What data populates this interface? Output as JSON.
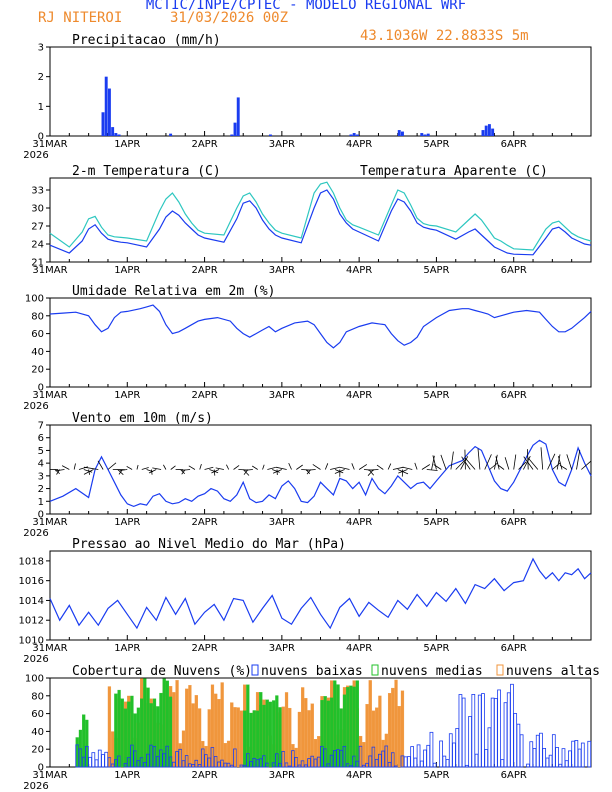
{
  "header": {
    "title": "MCTIC/INPE/CPTEC - MODELO REGIONAL WRF",
    "city": "RJ NITEROI",
    "date": "31/03/2026 00Z",
    "coords": "43.1036W 22.8833S 5m"
  },
  "colors": {
    "blue": "#1a3cf0",
    "cyan": "#2ec7c0",
    "green": "#22c02a",
    "orange": "#f0963c",
    "black": "#000000"
  },
  "x_axis": {
    "day_ticks": [
      "31MAR",
      "1APR",
      "2APR",
      "3APR",
      "4APR",
      "5APR",
      "6APR"
    ],
    "year": "2026",
    "hours_total": 168
  },
  "chart_data": [
    {
      "id": "precip",
      "type": "bar",
      "title": "Precipitacao (mm/h)",
      "ylim": [
        0,
        3
      ],
      "yticks": [
        0,
        1,
        2,
        3
      ],
      "x": [
        16,
        17,
        18,
        19,
        20,
        21,
        37,
        56,
        57,
        58,
        68,
        93,
        94,
        95,
        108,
        109,
        115,
        116,
        117,
        134,
        135,
        136,
        137
      ],
      "values": [
        0.8,
        2.0,
        1.6,
        0.3,
        0.1,
        0.05,
        0.08,
        0.05,
        0.45,
        1.3,
        0.05,
        0.05,
        0.1,
        0.05,
        0.2,
        0.15,
        0.1,
        0.05,
        0.08,
        0.2,
        0.35,
        0.4,
        0.25
      ]
    },
    {
      "id": "temp",
      "type": "line",
      "title": "2-m Temperatura (C)",
      "legend2": "Temperatura Aparente (C)",
      "ylim": [
        21,
        35
      ],
      "yticks": [
        21,
        24,
        27,
        30,
        33
      ],
      "x": [
        0,
        6,
        10,
        12,
        14,
        16,
        18,
        20,
        22,
        24,
        30,
        34,
        36,
        38,
        40,
        42,
        44,
        46,
        48,
        54,
        58,
        60,
        62,
        64,
        66,
        68,
        70,
        72,
        78,
        82,
        84,
        86,
        88,
        90,
        92,
        94,
        96,
        102,
        106,
        108,
        110,
        112,
        114,
        116,
        118,
        120,
        126,
        130,
        132,
        134,
        136,
        138,
        140,
        142,
        144,
        150,
        154,
        156,
        158,
        160,
        162,
        164,
        166,
        168
      ],
      "series": [
        {
          "name": "temp",
          "values": [
            23.8,
            22.5,
            24.5,
            26.5,
            27.2,
            25.8,
            24.8,
            24.5,
            24.3,
            24.2,
            23.5,
            26.5,
            28.5,
            29.5,
            28.8,
            27.5,
            26.5,
            25.5,
            25.0,
            24.3,
            28.2,
            30.8,
            31.2,
            30.0,
            28.0,
            26.5,
            25.5,
            25.0,
            24.2,
            30.0,
            32.5,
            33.0,
            31.5,
            29.0,
            27.5,
            26.5,
            26.0,
            24.5,
            29.5,
            31.5,
            31.0,
            29.5,
            27.5,
            26.8,
            26.5,
            26.3,
            24.8,
            26.0,
            26.5,
            25.5,
            24.5,
            23.5,
            23.0,
            22.5,
            22.3,
            22.2,
            25.0,
            26.5,
            26.8,
            26.0,
            25.0,
            24.5,
            24.0,
            23.8
          ]
        },
        {
          "name": "apparent",
          "values": [
            25.8,
            23.5,
            26.0,
            28.2,
            28.6,
            26.8,
            25.5,
            25.2,
            25.1,
            25.0,
            24.5,
            29.5,
            31.5,
            32.5,
            31.0,
            29.0,
            27.5,
            26.3,
            25.8,
            25.5,
            30.0,
            32.0,
            32.5,
            31.0,
            29.0,
            27.5,
            26.3,
            25.8,
            25.0,
            32.5,
            34.0,
            34.3,
            32.5,
            30.0,
            28.0,
            27.2,
            26.8,
            25.5,
            30.5,
            33.0,
            32.5,
            30.5,
            28.3,
            27.4,
            27.1,
            27.0,
            26.0,
            28.0,
            29.0,
            28.0,
            26.5,
            25.0,
            24.5,
            23.8,
            23.2,
            23.0,
            26.5,
            27.5,
            27.8,
            26.8,
            25.8,
            25.2,
            24.8,
            24.5
          ]
        }
      ]
    },
    {
      "id": "rh",
      "type": "line",
      "title": "Umidade Relativa em 2m (%)",
      "ylim": [
        0,
        100
      ],
      "yticks": [
        0,
        20,
        40,
        60,
        80,
        100
      ],
      "x": [
        0,
        4,
        8,
        12,
        14,
        16,
        18,
        20,
        22,
        24,
        28,
        30,
        32,
        34,
        36,
        38,
        40,
        42,
        44,
        46,
        48,
        52,
        56,
        58,
        60,
        62,
        64,
        66,
        68,
        70,
        72,
        76,
        80,
        82,
        84,
        86,
        88,
        90,
        92,
        96,
        100,
        104,
        106,
        108,
        110,
        112,
        114,
        116,
        120,
        124,
        128,
        130,
        132,
        134,
        136,
        138,
        140,
        144,
        148,
        152,
        154,
        156,
        158,
        160,
        162,
        164,
        166,
        168
      ],
      "values": [
        82,
        83,
        84,
        80,
        70,
        62,
        66,
        78,
        84,
        85,
        88,
        90,
        92,
        85,
        70,
        60,
        62,
        66,
        70,
        74,
        76,
        78,
        74,
        66,
        60,
        56,
        60,
        64,
        68,
        62,
        66,
        72,
        74,
        70,
        60,
        50,
        44,
        50,
        62,
        68,
        72,
        70,
        60,
        52,
        47,
        50,
        56,
        68,
        78,
        86,
        88,
        88,
        86,
        84,
        82,
        78,
        80,
        84,
        86,
        84,
        76,
        68,
        62,
        62,
        66,
        72,
        78,
        85
      ]
    },
    {
      "id": "wind",
      "type": "line",
      "title": "Vento em 10m (m/s)",
      "ylim": [
        0,
        7
      ],
      "yticks": [
        0,
        1,
        2,
        3,
        4,
        5,
        6,
        7
      ],
      "x": [
        0,
        4,
        8,
        12,
        14,
        16,
        18,
        20,
        22,
        24,
        26,
        28,
        30,
        32,
        34,
        36,
        38,
        40,
        42,
        44,
        46,
        48,
        50,
        52,
        54,
        56,
        58,
        60,
        62,
        64,
        66,
        68,
        70,
        72,
        74,
        76,
        78,
        80,
        82,
        84,
        86,
        88,
        90,
        92,
        94,
        96,
        98,
        100,
        102,
        104,
        106,
        108,
        110,
        112,
        114,
        116,
        118,
        120,
        124,
        128,
        130,
        132,
        134,
        136,
        138,
        140,
        142,
        144,
        146,
        148,
        150,
        152,
        154,
        156,
        158,
        160,
        162,
        164,
        166,
        168
      ],
      "values": [
        1.0,
        1.4,
        2.0,
        1.3,
        3.5,
        4.5,
        3.5,
        2.5,
        1.5,
        0.8,
        0.6,
        0.8,
        0.7,
        1.4,
        1.6,
        1.0,
        0.8,
        0.9,
        1.2,
        1.0,
        1.4,
        1.6,
        2.0,
        1.8,
        1.2,
        1.0,
        1.5,
        2.5,
        1.2,
        0.9,
        1.0,
        1.5,
        1.2,
        2.2,
        2.6,
        2.0,
        1.0,
        0.9,
        1.4,
        2.5,
        2.0,
        1.5,
        2.8,
        2.6,
        2.0,
        2.5,
        1.5,
        2.8,
        2.0,
        1.6,
        2.2,
        3.0,
        2.5,
        2.0,
        2.4,
        2.5,
        2.0,
        2.6,
        3.8,
        4.2,
        4.8,
        5.3,
        5.0,
        3.8,
        2.6,
        2.0,
        1.8,
        2.5,
        3.5,
        4.5,
        5.4,
        5.8,
        5.5,
        3.5,
        2.5,
        2.2,
        3.5,
        5.2,
        4.0,
        3.0
      ]
    },
    {
      "id": "pres",
      "type": "line",
      "title": "Pressao ao Nivel Medio do Mar (hPa)",
      "ylim": [
        1010,
        1019
      ],
      "yticks": [
        1010,
        1012,
        1014,
        1016,
        1018
      ],
      "x": [
        0,
        3,
        6,
        9,
        12,
        15,
        18,
        21,
        24,
        27,
        30,
        33,
        36,
        39,
        42,
        45,
        48,
        51,
        54,
        57,
        60,
        63,
        66,
        69,
        72,
        75,
        78,
        81,
        84,
        87,
        90,
        93,
        96,
        99,
        102,
        105,
        108,
        111,
        114,
        117,
        120,
        123,
        126,
        129,
        132,
        135,
        138,
        141,
        144,
        147,
        150,
        152,
        154,
        156,
        158,
        160,
        162,
        164,
        166,
        168
      ],
      "values": [
        1014.2,
        1012.0,
        1013.5,
        1011.5,
        1012.8,
        1011.5,
        1013.2,
        1014.0,
        1012.6,
        1011.2,
        1013.3,
        1012.0,
        1014.3,
        1012.6,
        1014.2,
        1011.6,
        1012.8,
        1013.6,
        1012.0,
        1014.2,
        1014.0,
        1011.8,
        1013.2,
        1014.5,
        1012.2,
        1011.6,
        1013.2,
        1014.3,
        1012.6,
        1011.2,
        1013.3,
        1014.2,
        1012.4,
        1013.8,
        1013.0,
        1012.3,
        1014.0,
        1013.1,
        1014.6,
        1013.4,
        1014.8,
        1013.9,
        1015.2,
        1013.7,
        1015.6,
        1015.2,
        1016.2,
        1015.0,
        1015.8,
        1016.0,
        1018.2,
        1017.0,
        1016.2,
        1016.8,
        1016.0,
        1016.8,
        1016.6,
        1017.2,
        1016.2,
        1016.8
      ]
    },
    {
      "id": "clouds",
      "type": "bar",
      "title": "Cobertura de Nuvens (%)",
      "ylim": [
        0,
        100
      ],
      "yticks": [
        0,
        20,
        40,
        60,
        80,
        100
      ],
      "series": [
        {
          "name": "nuvens baixas",
          "color": "#1a3cf0"
        },
        {
          "name": "nuvens medias",
          "color": "#22c02a"
        },
        {
          "name": "nuvens altas",
          "color": "#f0963c"
        }
      ]
    }
  ]
}
